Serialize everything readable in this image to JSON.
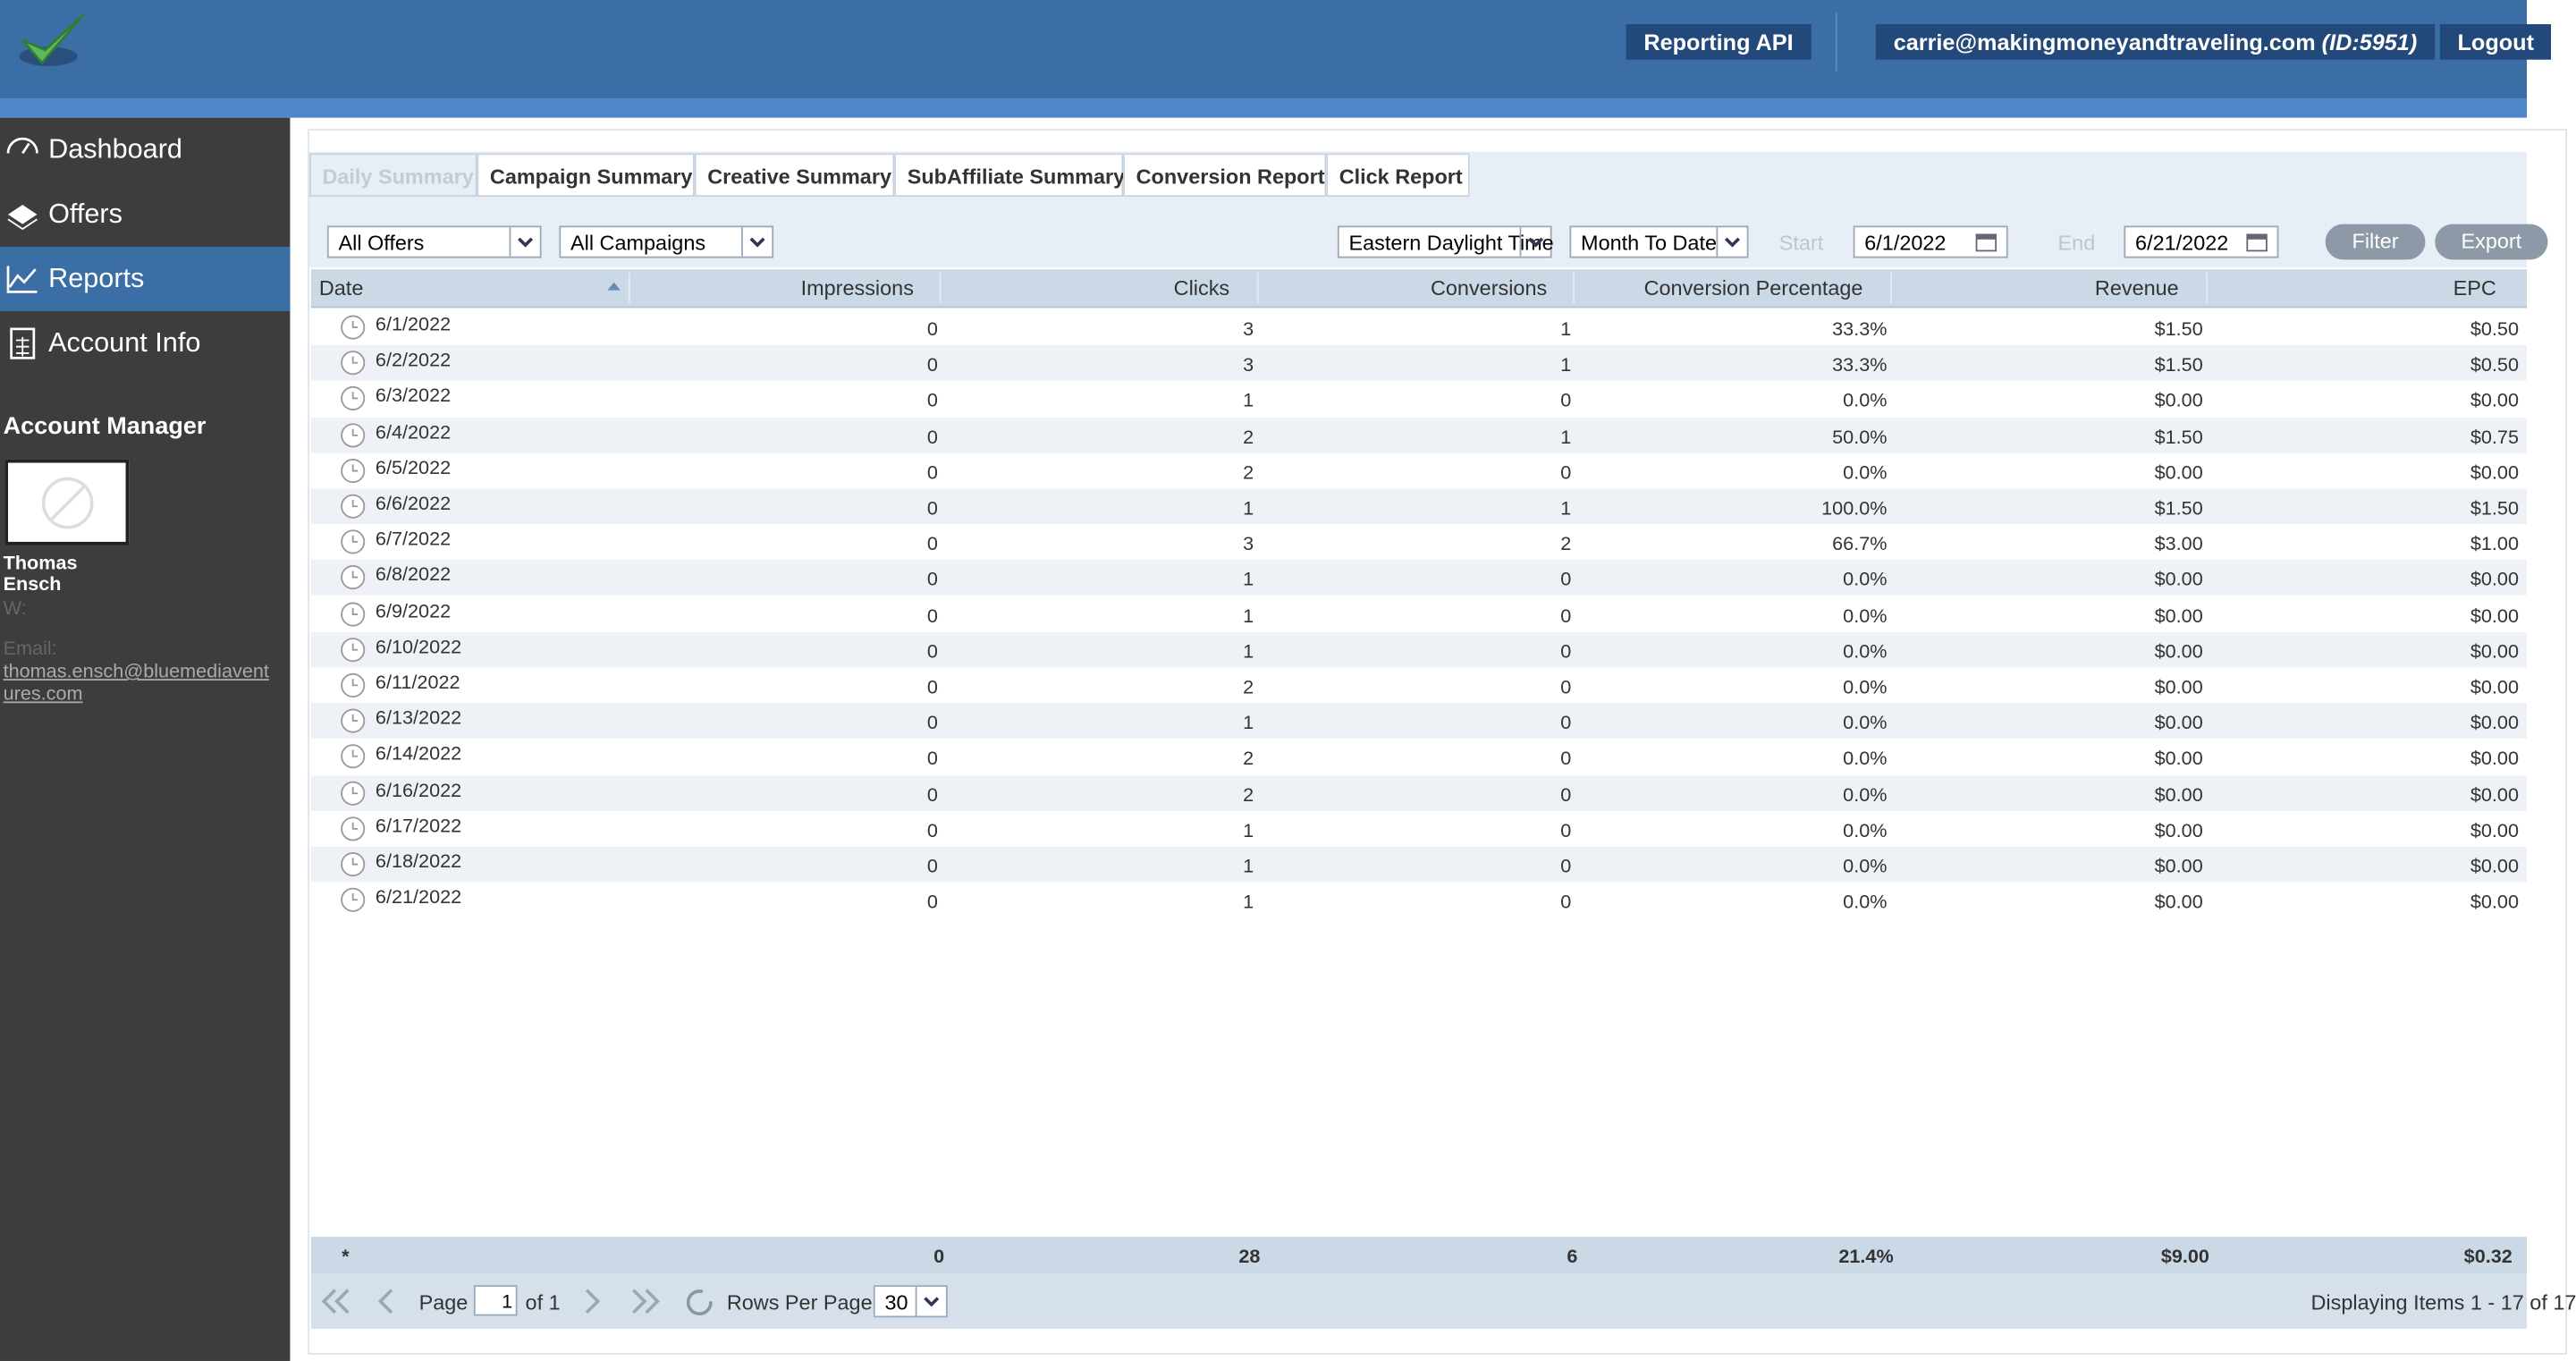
{
  "header": {
    "reporting_api": "Reporting API",
    "user_email": "carrie@makingmoneyandtraveling.com",
    "user_id": "(ID:5951)",
    "logout": "Logout"
  },
  "sidebar": {
    "nav": [
      "Dashboard",
      "Offers",
      "Reports",
      "Account Info"
    ],
    "account_manager": {
      "heading": "Account Manager",
      "name": "Thomas Ensch",
      "work_label": "W:",
      "email_label": "Email:",
      "email": "thomas.ensch@bluemediaventures.com"
    }
  },
  "tabs": [
    "Daily Summary",
    "Campaign Summary",
    "Creative Summary",
    "SubAffiliate Summary",
    "Conversion Report",
    "Click Report"
  ],
  "filters": {
    "offers": "All Offers",
    "campaigns": "All Campaigns",
    "timezone": "Eastern Daylight Time",
    "period": "Month To Date",
    "start_label": "Start",
    "start": "6/1/2022",
    "end_label": "End",
    "end": "6/21/2022",
    "filter": "Filter",
    "export": "Export"
  },
  "table": {
    "columns": [
      "Date",
      "Impressions",
      "Clicks",
      "Conversions",
      "Conversion Percentage",
      "Revenue",
      "EPC"
    ],
    "rows": [
      [
        "6/1/2022",
        "0",
        "3",
        "1",
        "33.3%",
        "$1.50",
        "$0.50"
      ],
      [
        "6/2/2022",
        "0",
        "3",
        "1",
        "33.3%",
        "$1.50",
        "$0.50"
      ],
      [
        "6/3/2022",
        "0",
        "1",
        "0",
        "0.0%",
        "$0.00",
        "$0.00"
      ],
      [
        "6/4/2022",
        "0",
        "2",
        "1",
        "50.0%",
        "$1.50",
        "$0.75"
      ],
      [
        "6/5/2022",
        "0",
        "2",
        "0",
        "0.0%",
        "$0.00",
        "$0.00"
      ],
      [
        "6/6/2022",
        "0",
        "1",
        "1",
        "100.0%",
        "$1.50",
        "$1.50"
      ],
      [
        "6/7/2022",
        "0",
        "3",
        "2",
        "66.7%",
        "$3.00",
        "$1.00"
      ],
      [
        "6/8/2022",
        "0",
        "1",
        "0",
        "0.0%",
        "$0.00",
        "$0.00"
      ],
      [
        "6/9/2022",
        "0",
        "1",
        "0",
        "0.0%",
        "$0.00",
        "$0.00"
      ],
      [
        "6/10/2022",
        "0",
        "1",
        "0",
        "0.0%",
        "$0.00",
        "$0.00"
      ],
      [
        "6/11/2022",
        "0",
        "2",
        "0",
        "0.0%",
        "$0.00",
        "$0.00"
      ],
      [
        "6/13/2022",
        "0",
        "1",
        "0",
        "0.0%",
        "$0.00",
        "$0.00"
      ],
      [
        "6/14/2022",
        "0",
        "2",
        "0",
        "0.0%",
        "$0.00",
        "$0.00"
      ],
      [
        "6/16/2022",
        "0",
        "2",
        "0",
        "0.0%",
        "$0.00",
        "$0.00"
      ],
      [
        "6/17/2022",
        "0",
        "1",
        "0",
        "0.0%",
        "$0.00",
        "$0.00"
      ],
      [
        "6/18/2022",
        "0",
        "1",
        "0",
        "0.0%",
        "$0.00",
        "$0.00"
      ],
      [
        "6/21/2022",
        "0",
        "1",
        "0",
        "0.0%",
        "$0.00",
        "$0.00"
      ]
    ],
    "totals": [
      "*",
      "0",
      "28",
      "6",
      "21.4%",
      "$9.00",
      "$0.32"
    ]
  },
  "pager": {
    "page_label": "Page",
    "page": "1",
    "of": "of 1",
    "rows_per_page_label": "Rows Per Page:",
    "rows_per_page": "30",
    "displaying": "Displaying Items 1 - 17 of 17"
  }
}
